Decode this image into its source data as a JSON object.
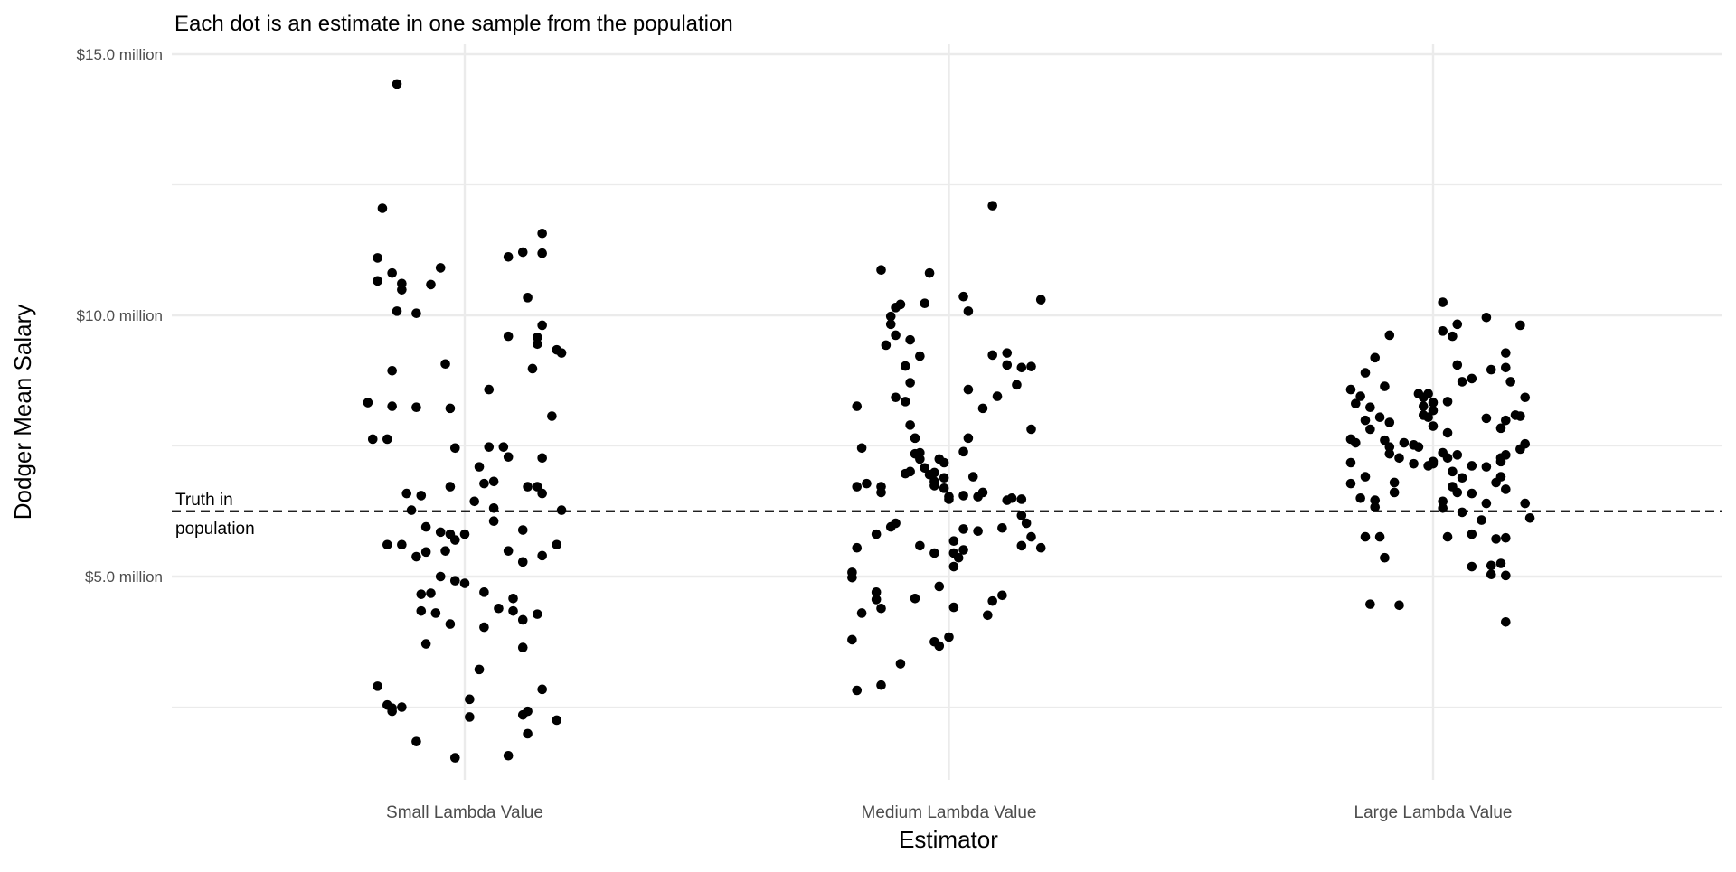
{
  "chart_data": {
    "type": "scatter",
    "title": "Each dot is an estimate in one sample from the population",
    "xlabel": "Estimator",
    "ylabel": "Dodger Mean Salary",
    "categories": [
      "Small Lambda Value",
      "Medium Lambda Value",
      "Large Lambda Value"
    ],
    "y_ticks": [
      5,
      10,
      15
    ],
    "y_tick_labels": [
      "$5.0 million",
      "$10.0 million",
      "$15.0 million"
    ],
    "y_minor_gridlines": [
      2.5,
      7.5,
      12.5
    ],
    "ylim": [
      1.2,
      15.2
    ],
    "grid": true,
    "reference_line": {
      "value": 6.25,
      "style": "dashed",
      "label_line1": "Truth in",
      "label_line2": "population"
    },
    "point_color": "#000000",
    "grid_color": "#ebebeb",
    "series": [
      {
        "name": "Small Lambda Value",
        "points": [
          [
            -0.14,
            14.43
          ],
          [
            -0.17,
            12.05
          ],
          [
            -0.18,
            11.1
          ],
          [
            -0.18,
            10.66
          ],
          [
            -0.15,
            10.81
          ],
          [
            -0.13,
            10.61
          ],
          [
            -0.13,
            10.49
          ],
          [
            -0.14,
            10.08
          ],
          [
            -0.1,
            10.04
          ],
          [
            -0.05,
            10.91
          ],
          [
            -0.07,
            10.59
          ],
          [
            -0.15,
            8.94
          ],
          [
            -0.2,
            8.33
          ],
          [
            -0.15,
            8.26
          ],
          [
            -0.1,
            8.24
          ],
          [
            -0.04,
            9.07
          ],
          [
            -0.03,
            8.22
          ],
          [
            -0.19,
            7.63
          ],
          [
            -0.16,
            7.63
          ],
          [
            -0.02,
            7.46
          ],
          [
            -0.12,
            6.59
          ],
          [
            -0.09,
            6.55
          ],
          [
            -0.03,
            6.72
          ],
          [
            -0.11,
            6.27
          ],
          [
            -0.16,
            5.61
          ],
          [
            -0.13,
            5.61
          ],
          [
            -0.08,
            5.95
          ],
          [
            -0.1,
            5.38
          ],
          [
            -0.08,
            5.47
          ],
          [
            -0.05,
            5.85
          ],
          [
            -0.03,
            5.81
          ],
          [
            0.0,
            5.81
          ],
          [
            -0.02,
            5.7
          ],
          [
            -0.04,
            5.49
          ],
          [
            -0.05,
            5.0
          ],
          [
            -0.02,
            4.92
          ],
          [
            0.0,
            4.87
          ],
          [
            -0.09,
            4.66
          ],
          [
            -0.07,
            4.68
          ],
          [
            -0.09,
            4.34
          ],
          [
            -0.06,
            4.3
          ],
          [
            -0.08,
            3.71
          ],
          [
            -0.03,
            4.09
          ],
          [
            0.03,
            7.1
          ],
          [
            0.02,
            6.44
          ],
          [
            0.04,
            6.78
          ],
          [
            0.06,
            6.82
          ],
          [
            0.05,
            7.48
          ],
          [
            0.06,
            6.31
          ],
          [
            0.08,
            7.48
          ],
          [
            0.09,
            7.29
          ],
          [
            0.06,
            6.06
          ],
          [
            0.13,
            6.72
          ],
          [
            0.15,
            6.72
          ],
          [
            0.16,
            6.59
          ],
          [
            0.16,
            7.27
          ],
          [
            0.2,
            6.27
          ],
          [
            0.18,
            8.07
          ],
          [
            0.09,
            5.49
          ],
          [
            0.12,
            5.89
          ],
          [
            0.12,
            5.28
          ],
          [
            0.16,
            5.4
          ],
          [
            0.19,
            5.61
          ],
          [
            0.04,
            4.7
          ],
          [
            0.04,
            4.03
          ],
          [
            0.07,
            4.39
          ],
          [
            0.1,
            4.58
          ],
          [
            0.1,
            4.34
          ],
          [
            0.12,
            4.17
          ],
          [
            0.15,
            4.28
          ],
          [
            0.12,
            3.64
          ],
          [
            0.05,
            8.58
          ],
          [
            0.09,
            9.6
          ],
          [
            0.09,
            11.12
          ],
          [
            0.12,
            11.21
          ],
          [
            0.13,
            10.34
          ],
          [
            0.15,
            9.58
          ],
          [
            0.16,
            9.81
          ],
          [
            0.15,
            9.45
          ],
          [
            0.14,
            8.98
          ],
          [
            0.19,
            9.34
          ],
          [
            0.2,
            9.28
          ],
          [
            0.16,
            11.19
          ],
          [
            0.16,
            11.57
          ],
          [
            0.03,
            3.22
          ],
          [
            0.01,
            2.65
          ],
          [
            0.01,
            2.31
          ],
          [
            0.12,
            2.35
          ],
          [
            0.13,
            2.42
          ],
          [
            0.16,
            2.84
          ],
          [
            0.13,
            1.99
          ],
          [
            0.19,
            2.25
          ],
          [
            0.09,
            1.57
          ],
          [
            -0.02,
            1.53
          ],
          [
            -0.1,
            1.84
          ],
          [
            -0.18,
            2.9
          ],
          [
            -0.16,
            2.54
          ],
          [
            -0.15,
            2.48
          ],
          [
            -0.13,
            2.5
          ],
          [
            -0.15,
            2.42
          ]
        ]
      },
      {
        "name": "Medium Lambda Value",
        "points": [
          [
            -0.19,
            8.26
          ],
          [
            -0.18,
            7.46
          ],
          [
            -0.19,
            6.72
          ],
          [
            -0.17,
            6.78
          ],
          [
            -0.14,
            6.72
          ],
          [
            -0.14,
            6.61
          ],
          [
            -0.19,
            5.55
          ],
          [
            -0.2,
            5.08
          ],
          [
            -0.2,
            4.98
          ],
          [
            -0.15,
            5.81
          ],
          [
            -0.12,
            5.95
          ],
          [
            -0.11,
            6.02
          ],
          [
            -0.18,
            4.3
          ],
          [
            -0.15,
            4.7
          ],
          [
            -0.15,
            4.56
          ],
          [
            -0.14,
            4.39
          ],
          [
            -0.2,
            3.79
          ],
          [
            -0.19,
            2.82
          ],
          [
            -0.14,
            2.92
          ],
          [
            -0.1,
            3.33
          ],
          [
            -0.14,
            10.87
          ],
          [
            -0.11,
            10.15
          ],
          [
            -0.12,
            9.98
          ],
          [
            -0.12,
            9.83
          ],
          [
            -0.11,
            9.62
          ],
          [
            -0.13,
            9.43
          ],
          [
            -0.1,
            10.21
          ],
          [
            -0.08,
            9.53
          ],
          [
            -0.06,
            9.22
          ],
          [
            -0.05,
            10.23
          ],
          [
            -0.04,
            10.81
          ],
          [
            -0.09,
            9.03
          ],
          [
            -0.08,
            8.71
          ],
          [
            -0.11,
            8.43
          ],
          [
            -0.09,
            8.35
          ],
          [
            -0.08,
            7.9
          ],
          [
            -0.07,
            7.65
          ],
          [
            -0.07,
            7.35
          ],
          [
            -0.06,
            7.37
          ],
          [
            -0.06,
            7.25
          ],
          [
            -0.09,
            6.97
          ],
          [
            -0.08,
            7.01
          ],
          [
            -0.05,
            7.08
          ],
          [
            -0.04,
            6.95
          ],
          [
            -0.03,
            6.99
          ],
          [
            -0.03,
            6.82
          ],
          [
            -0.02,
            7.25
          ],
          [
            -0.01,
            7.18
          ],
          [
            -0.03,
            6.74
          ],
          [
            -0.01,
            6.69
          ],
          [
            0.0,
            6.53
          ],
          [
            -0.01,
            6.89
          ],
          [
            0.0,
            6.48
          ],
          [
            0.03,
            6.55
          ],
          [
            0.04,
            7.65
          ],
          [
            0.03,
            7.39
          ],
          [
            -0.02,
            4.81
          ],
          [
            -0.03,
            5.45
          ],
          [
            -0.06,
            5.59
          ],
          [
            -0.07,
            4.58
          ],
          [
            -0.03,
            3.75
          ],
          [
            -0.02,
            3.67
          ],
          [
            0.0,
            3.84
          ],
          [
            0.01,
            5.68
          ],
          [
            0.01,
            5.45
          ],
          [
            0.03,
            5.51
          ],
          [
            0.02,
            5.36
          ],
          [
            0.01,
            5.19
          ],
          [
            0.03,
            5.91
          ],
          [
            0.06,
            5.87
          ],
          [
            0.05,
            6.91
          ],
          [
            0.06,
            6.53
          ],
          [
            0.07,
            6.61
          ],
          [
            0.08,
            4.26
          ],
          [
            0.09,
            4.53
          ],
          [
            0.11,
            4.64
          ],
          [
            0.01,
            4.41
          ],
          [
            0.07,
            8.22
          ],
          [
            0.09,
            12.1
          ],
          [
            0.03,
            10.36
          ],
          [
            0.04,
            10.08
          ],
          [
            0.04,
            8.58
          ],
          [
            0.09,
            9.24
          ],
          [
            0.1,
            8.45
          ],
          [
            0.12,
            9.28
          ],
          [
            0.12,
            9.05
          ],
          [
            0.14,
            8.67
          ],
          [
            0.15,
            9.0
          ],
          [
            0.17,
            9.02
          ],
          [
            0.19,
            10.3
          ],
          [
            0.17,
            7.82
          ],
          [
            0.12,
            6.46
          ],
          [
            0.13,
            6.5
          ],
          [
            0.15,
            6.48
          ],
          [
            0.15,
            6.17
          ],
          [
            0.16,
            6.02
          ],
          [
            0.15,
            5.59
          ],
          [
            0.17,
            5.76
          ],
          [
            0.19,
            5.55
          ],
          [
            0.11,
            5.93
          ]
        ]
      },
      {
        "name": "Large Lambda Value",
        "points": [
          [
            -0.17,
            8.58
          ],
          [
            -0.16,
            8.31
          ],
          [
            -0.15,
            8.45
          ],
          [
            -0.14,
            8.9
          ],
          [
            -0.12,
            9.19
          ],
          [
            -0.09,
            9.62
          ],
          [
            -0.1,
            8.64
          ],
          [
            -0.13,
            8.24
          ],
          [
            -0.14,
            7.99
          ],
          [
            -0.13,
            7.82
          ],
          [
            -0.17,
            7.63
          ],
          [
            -0.16,
            7.56
          ],
          [
            -0.17,
            7.18
          ],
          [
            -0.14,
            6.91
          ],
          [
            -0.17,
            6.78
          ],
          [
            -0.15,
            6.5
          ],
          [
            -0.12,
            6.46
          ],
          [
            -0.12,
            6.33
          ],
          [
            -0.08,
            6.8
          ],
          [
            -0.08,
            6.61
          ],
          [
            -0.11,
            8.05
          ],
          [
            -0.09,
            7.95
          ],
          [
            -0.1,
            7.61
          ],
          [
            -0.09,
            7.48
          ],
          [
            -0.09,
            7.35
          ],
          [
            -0.07,
            7.27
          ],
          [
            -0.06,
            7.56
          ],
          [
            -0.04,
            7.52
          ],
          [
            -0.03,
            7.48
          ],
          [
            -0.04,
            7.16
          ],
          [
            -0.02,
            8.09
          ],
          [
            -0.01,
            8.05
          ],
          [
            -0.02,
            8.26
          ],
          [
            -0.02,
            8.43
          ],
          [
            -0.03,
            8.5
          ],
          [
            -0.01,
            8.5
          ],
          [
            0.0,
            8.18
          ],
          [
            0.0,
            7.88
          ],
          [
            0.0,
            8.33
          ],
          [
            0.0,
            7.2
          ],
          [
            -0.01,
            7.12
          ],
          [
            0.0,
            7.16
          ],
          [
            0.02,
            7.37
          ],
          [
            0.03,
            7.75
          ],
          [
            0.03,
            8.35
          ],
          [
            0.03,
            7.27
          ],
          [
            0.04,
            7.01
          ],
          [
            0.04,
            6.72
          ],
          [
            0.05,
            7.33
          ],
          [
            0.06,
            6.89
          ],
          [
            0.05,
            6.61
          ],
          [
            0.02,
            6.44
          ],
          [
            0.02,
            6.31
          ],
          [
            0.03,
            5.76
          ],
          [
            0.06,
            6.23
          ],
          [
            0.08,
            6.59
          ],
          [
            0.08,
            7.12
          ],
          [
            0.05,
            9.05
          ],
          [
            0.06,
            8.73
          ],
          [
            0.08,
            8.79
          ],
          [
            0.04,
            9.6
          ],
          [
            0.02,
            9.7
          ],
          [
            0.05,
            9.83
          ],
          [
            0.02,
            10.25
          ],
          [
            0.11,
            9.96
          ],
          [
            0.12,
            8.96
          ],
          [
            0.15,
            9.28
          ],
          [
            0.15,
            9.0
          ],
          [
            0.16,
            8.73
          ],
          [
            0.11,
            8.03
          ],
          [
            0.14,
            7.84
          ],
          [
            0.15,
            7.99
          ],
          [
            0.17,
            8.09
          ],
          [
            0.18,
            8.07
          ],
          [
            0.19,
            8.43
          ],
          [
            0.18,
            9.81
          ],
          [
            0.19,
            7.54
          ],
          [
            0.18,
            7.44
          ],
          [
            0.15,
            7.33
          ],
          [
            0.14,
            7.27
          ],
          [
            0.14,
            7.2
          ],
          [
            0.11,
            7.1
          ],
          [
            0.14,
            6.91
          ],
          [
            0.13,
            6.8
          ],
          [
            0.15,
            6.67
          ],
          [
            0.11,
            6.4
          ],
          [
            0.1,
            6.08
          ],
          [
            0.13,
            5.72
          ],
          [
            0.15,
            5.74
          ],
          [
            0.19,
            6.4
          ],
          [
            0.2,
            6.12
          ],
          [
            0.08,
            5.81
          ],
          [
            0.08,
            5.19
          ],
          [
            0.12,
            5.21
          ],
          [
            0.12,
            5.04
          ],
          [
            0.14,
            5.25
          ],
          [
            0.15,
            5.02
          ],
          [
            0.15,
            4.13
          ],
          [
            -0.14,
            5.76
          ],
          [
            -0.11,
            5.76
          ],
          [
            -0.1,
            5.36
          ],
          [
            -0.13,
            4.47
          ],
          [
            -0.07,
            4.45
          ]
        ]
      }
    ]
  }
}
